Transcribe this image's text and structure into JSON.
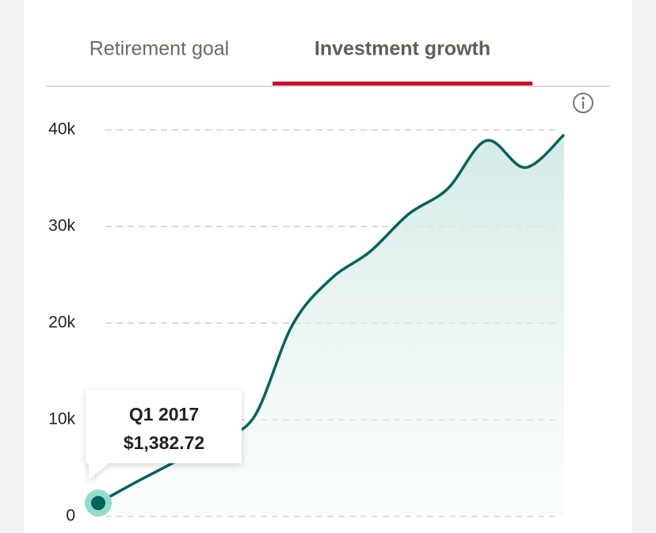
{
  "tabs": [
    {
      "label": "Retirement goal",
      "active": false
    },
    {
      "label": "Investment growth",
      "active": true
    }
  ],
  "chart_data": {
    "type": "line",
    "values": [
      1382.72,
      3600,
      5700,
      8000,
      10200,
      19800,
      24600,
      27400,
      31300,
      33900,
      38900,
      36100,
      39500
    ],
    "color": "#00635d",
    "ylim": [
      0,
      40000
    ],
    "yticks": [
      0,
      {
        "value": 10000,
        "label": "10k"
      },
      {
        "value": 20000,
        "label": "20k"
      },
      {
        "value": 30000,
        "label": "30k"
      },
      {
        "value": 40000,
        "label": "40k"
      }
    ],
    "grid": true,
    "tooltip": {
      "label": "Q1 2017",
      "value_label": "$1,382.72"
    }
  }
}
